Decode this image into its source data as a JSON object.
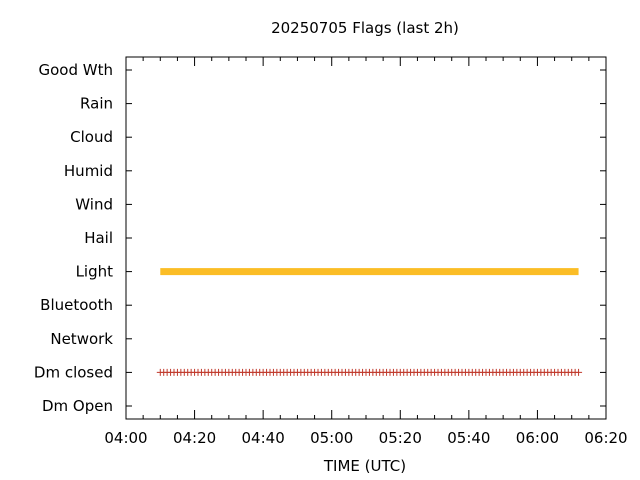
{
  "chart_data": {
    "type": "scatter",
    "title": "20250705 Flags (last 2h)",
    "xlabel": "TIME (UTC)",
    "ylabel": "",
    "x_ticks": [
      "04:00",
      "04:20",
      "04:40",
      "05:00",
      "05:20",
      "05:40",
      "06:00",
      "06:20"
    ],
    "xlim_minutes": [
      240,
      380
    ],
    "categories": [
      "Good Wth",
      "Rain",
      "Cloud",
      "Humid",
      "Wind",
      "Hail",
      "Light",
      "Bluetooth",
      "Network",
      "Dm closed",
      "Dm Open"
    ],
    "series": [
      {
        "category": "Light",
        "style": "bar",
        "color": "#fbbd26",
        "x_start": "04:10",
        "x_end": "06:12"
      },
      {
        "category": "Dm closed",
        "style": "plus-markers",
        "color": "#c0392b",
        "x_start": "04:10",
        "x_end": "06:12",
        "interval_minutes": 1
      }
    ],
    "grid": false,
    "legend": "none"
  }
}
